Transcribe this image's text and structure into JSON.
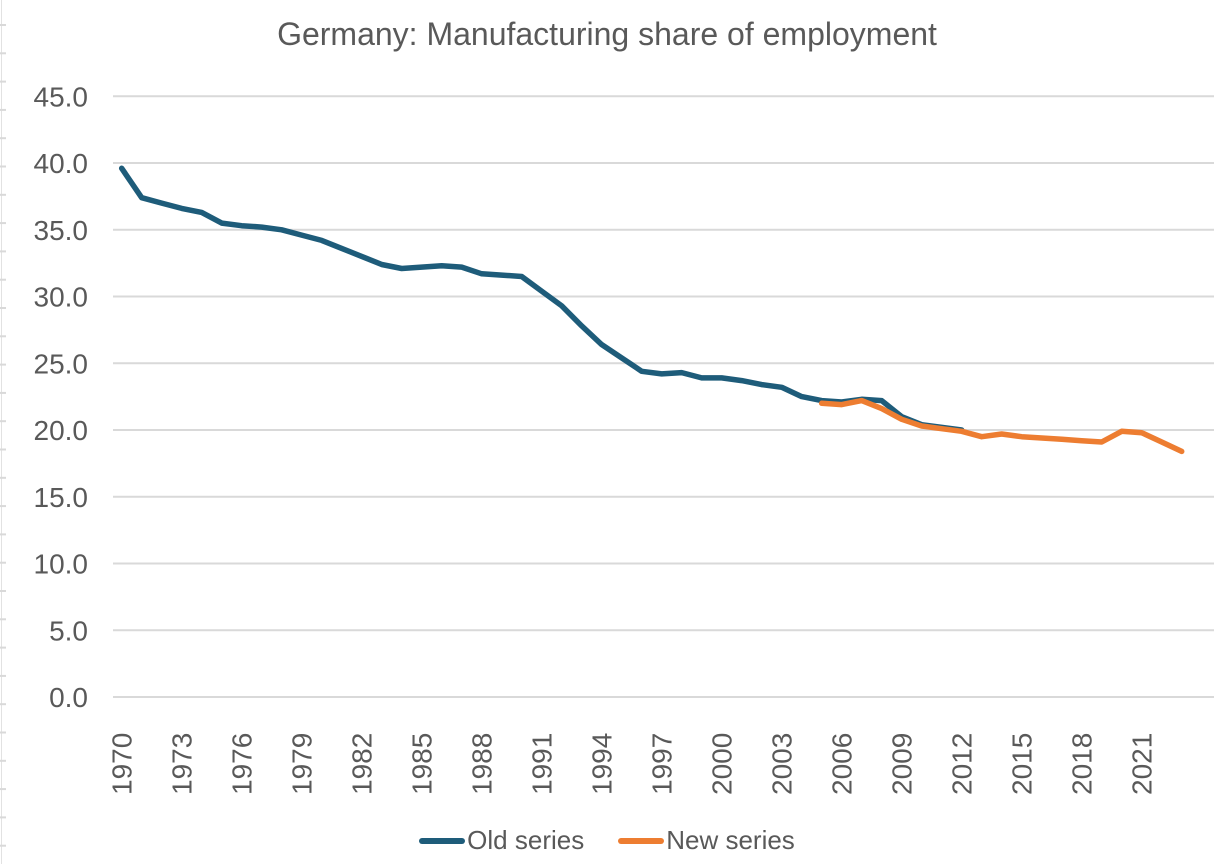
{
  "title": "Germany: Manufacturing share of employment",
  "colors": {
    "old_series": "#1E5C7A",
    "new_series": "#ED7D31",
    "grid": "#D9D9D9",
    "text": "#595959"
  },
  "legend": {
    "position": "bottom",
    "items": [
      {
        "label": "Old series",
        "color_key": "old_series"
      },
      {
        "label": "New series",
        "color_key": "new_series"
      }
    ]
  },
  "chart_data": {
    "type": "line",
    "title": "Germany: Manufacturing share of employment",
    "xlabel": "",
    "ylabel": "",
    "grid": "horizontal",
    "legend_position": "bottom",
    "ylim": [
      0,
      45
    ],
    "ytick_step": 5,
    "ytick_labels": [
      "0.0",
      "5.0",
      "10.0",
      "15.0",
      "20.0",
      "25.0",
      "30.0",
      "35.0",
      "40.0",
      "45.0"
    ],
    "xticks": [
      1970,
      1973,
      1976,
      1979,
      1982,
      1985,
      1988,
      1991,
      1994,
      1997,
      2000,
      2003,
      2006,
      2009,
      2012,
      2015,
      2018,
      2021
    ],
    "xtick_labels": [
      "1970",
      "1973",
      "1976",
      "1979",
      "1982",
      "1985",
      "1988",
      "1991",
      "1994",
      "1997",
      "2000",
      "2003",
      "2006",
      "2009",
      "2012",
      "2015",
      "2018",
      "2021"
    ],
    "series": [
      {
        "name": "Old series",
        "color": "#1E5C7A",
        "years": [
          1970,
          1971,
          1972,
          1973,
          1974,
          1975,
          1976,
          1977,
          1978,
          1979,
          1980,
          1981,
          1982,
          1983,
          1984,
          1985,
          1986,
          1987,
          1988,
          1989,
          1990,
          1991,
          1992,
          1993,
          1994,
          1995,
          1996,
          1997,
          1998,
          1999,
          2000,
          2001,
          2002,
          2003,
          2004,
          2005,
          2006,
          2007,
          2008,
          2009,
          2010,
          2011,
          2012
        ],
        "values": [
          39.6,
          37.4,
          37.0,
          36.6,
          36.3,
          35.5,
          35.3,
          35.2,
          35.0,
          34.6,
          34.2,
          33.6,
          33.0,
          32.4,
          32.1,
          32.2,
          32.3,
          32.2,
          31.7,
          31.6,
          31.5,
          30.4,
          29.3,
          27.8,
          26.4,
          25.4,
          24.4,
          24.2,
          24.3,
          23.9,
          23.9,
          23.7,
          23.4,
          23.2,
          22.5,
          22.2,
          22.1,
          22.3,
          22.2,
          21.0,
          20.4,
          20.2,
          20.0
        ]
      },
      {
        "name": "New series",
        "color": "#ED7D31",
        "years": [
          2005,
          2006,
          2007,
          2008,
          2009,
          2010,
          2011,
          2012,
          2013,
          2014,
          2015,
          2016,
          2017,
          2018,
          2019,
          2020,
          2021,
          2022,
          2023
        ],
        "values": [
          22.0,
          21.9,
          22.2,
          21.6,
          20.8,
          20.3,
          20.1,
          19.9,
          19.5,
          19.7,
          19.5,
          19.4,
          19.3,
          19.2,
          19.1,
          19.9,
          19.8,
          19.1,
          18.4
        ]
      }
    ]
  }
}
